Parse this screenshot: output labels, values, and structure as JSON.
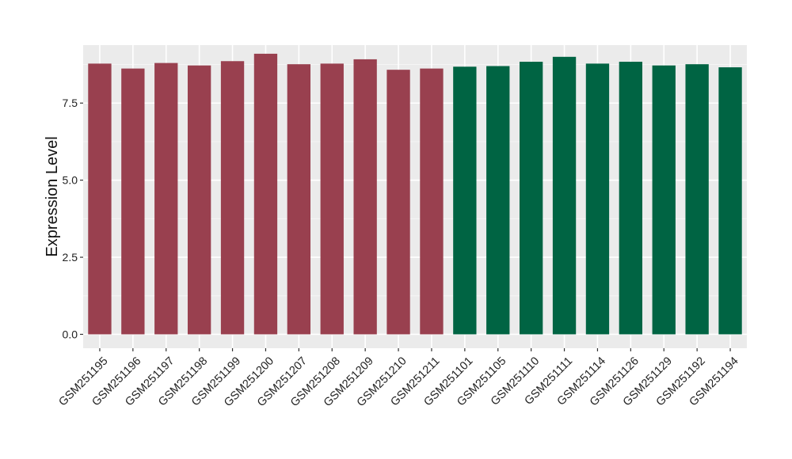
{
  "chart_data": {
    "type": "bar",
    "title": "",
    "xlabel": "",
    "ylabel": "Expression Level",
    "ylim": [
      -0.45,
      9.38
    ],
    "yticks": [
      0.0,
      2.5,
      5.0,
      7.5
    ],
    "ytick_labels": [
      "0.0",
      "2.5",
      "5.0",
      "7.5"
    ],
    "grid": true,
    "legend": "none",
    "colors": {
      "group_1": "#99404f",
      "group_2": "#006443",
      "panel_background": "#ebebeb",
      "grid_major": "#ffffff",
      "grid_minor": "#f5f5f5"
    },
    "categories": [
      "GSM251195",
      "GSM251196",
      "GSM251197",
      "GSM251198",
      "GSM251199",
      "GSM251200",
      "GSM251207",
      "GSM251208",
      "GSM251209",
      "GSM251210",
      "GSM251211",
      "GSM251101",
      "GSM251105",
      "GSM251110",
      "GSM251111",
      "GSM251114",
      "GSM251126",
      "GSM251129",
      "GSM251192",
      "GSM251194"
    ],
    "values": [
      8.78,
      8.62,
      8.8,
      8.72,
      8.86,
      9.1,
      8.76,
      8.78,
      8.92,
      8.58,
      8.62,
      8.68,
      8.7,
      8.84,
      9.0,
      8.78,
      8.84,
      8.72,
      8.76,
      8.66
    ],
    "bar_groups": [
      "group_1",
      "group_1",
      "group_1",
      "group_1",
      "group_1",
      "group_1",
      "group_1",
      "group_1",
      "group_1",
      "group_1",
      "group_1",
      "group_2",
      "group_2",
      "group_2",
      "group_2",
      "group_2",
      "group_2",
      "group_2",
      "group_2",
      "group_2"
    ]
  }
}
